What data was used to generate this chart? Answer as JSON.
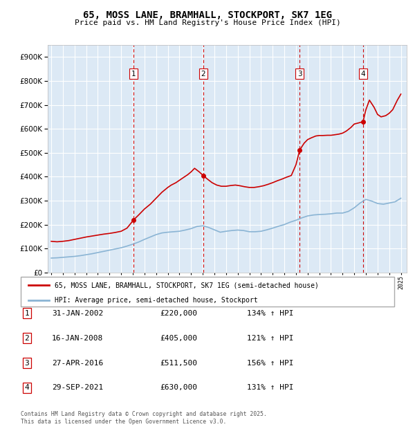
{
  "title": "65, MOSS LANE, BRAMHALL, STOCKPORT, SK7 1EG",
  "subtitle": "Price paid vs. HM Land Registry's House Price Index (HPI)",
  "property_label": "65, MOSS LANE, BRAMHALL, STOCKPORT, SK7 1EG (semi-detached house)",
  "hpi_label": "HPI: Average price, semi-detached house, Stockport",
  "footer": "Contains HM Land Registry data © Crown copyright and database right 2025.\nThis data is licensed under the Open Government Licence v3.0.",
  "transactions": [
    {
      "num": 1,
      "date": "31-JAN-2002",
      "price": 220000,
      "hpi_pct": "134%",
      "year": 2002.08
    },
    {
      "num": 2,
      "date": "16-JAN-2008",
      "price": 405000,
      "hpi_pct": "121%",
      "year": 2008.04
    },
    {
      "num": 3,
      "date": "27-APR-2016",
      "price": 511500,
      "hpi_pct": "156%",
      "year": 2016.32
    },
    {
      "num": 4,
      "date": "29-SEP-2021",
      "price": 630000,
      "hpi_pct": "131%",
      "year": 2021.75
    }
  ],
  "property_color": "#cc0000",
  "hpi_color": "#8ab4d4",
  "plot_bg": "#dce9f5",
  "ylim": [
    0,
    950000
  ],
  "yticks": [
    0,
    100000,
    200000,
    300000,
    400000,
    500000,
    600000,
    700000,
    800000,
    900000
  ],
  "xlim_start": 1994.7,
  "xlim_end": 2025.5,
  "hpi_data_x": [
    1995.0,
    1995.5,
    1996.0,
    1996.5,
    1997.0,
    1997.5,
    1998.0,
    1998.5,
    1999.0,
    1999.5,
    2000.0,
    2000.5,
    2001.0,
    2001.5,
    2002.0,
    2002.5,
    2003.0,
    2003.5,
    2004.0,
    2004.5,
    2005.0,
    2005.5,
    2006.0,
    2006.5,
    2007.0,
    2007.5,
    2008.0,
    2008.5,
    2009.0,
    2009.5,
    2010.0,
    2010.5,
    2011.0,
    2011.5,
    2012.0,
    2012.5,
    2013.0,
    2013.5,
    2014.0,
    2014.5,
    2015.0,
    2015.5,
    2016.0,
    2016.5,
    2017.0,
    2017.5,
    2018.0,
    2018.5,
    2019.0,
    2019.5,
    2020.0,
    2020.5,
    2021.0,
    2021.5,
    2022.0,
    2022.5,
    2023.0,
    2023.5,
    2024.0,
    2024.5,
    2025.0
  ],
  "hpi_data_y": [
    60000,
    61000,
    63000,
    65000,
    67000,
    70000,
    74000,
    78000,
    83000,
    88000,
    93000,
    98000,
    103000,
    110000,
    118000,
    127000,
    138000,
    148000,
    158000,
    165000,
    168000,
    170000,
    172000,
    177000,
    183000,
    192000,
    195000,
    188000,
    178000,
    168000,
    172000,
    175000,
    177000,
    175000,
    170000,
    170000,
    172000,
    178000,
    185000,
    193000,
    200000,
    210000,
    218000,
    228000,
    236000,
    240000,
    242000,
    243000,
    245000,
    248000,
    248000,
    255000,
    270000,
    290000,
    305000,
    298000,
    288000,
    285000,
    290000,
    295000,
    310000
  ],
  "property_data_x": [
    1995.0,
    1995.5,
    1996.0,
    1996.5,
    1997.0,
    1997.5,
    1998.0,
    1998.5,
    1999.0,
    1999.5,
    2000.0,
    2000.5,
    2001.0,
    2001.5,
    2002.08,
    2002.5,
    2003.0,
    2003.5,
    2004.0,
    2004.5,
    2005.0,
    2005.3,
    2005.7,
    2006.0,
    2006.3,
    2006.7,
    2007.0,
    2007.3,
    2007.7,
    2008.04,
    2008.4,
    2008.8,
    2009.2,
    2009.6,
    2010.0,
    2010.4,
    2010.8,
    2011.2,
    2011.6,
    2012.0,
    2012.4,
    2012.8,
    2013.2,
    2013.6,
    2014.0,
    2014.4,
    2014.8,
    2015.2,
    2015.6,
    2016.0,
    2016.32,
    2016.7,
    2017.0,
    2017.3,
    2017.7,
    2018.0,
    2018.3,
    2018.7,
    2019.0,
    2019.3,
    2019.7,
    2020.0,
    2020.3,
    2020.7,
    2021.0,
    2021.4,
    2021.75,
    2022.0,
    2022.3,
    2022.7,
    2023.0,
    2023.3,
    2023.7,
    2024.0,
    2024.3,
    2024.7,
    2025.0
  ],
  "property_data_y": [
    130000,
    128000,
    130000,
    133000,
    138000,
    143000,
    148000,
    152000,
    156000,
    160000,
    163000,
    167000,
    172000,
    185000,
    220000,
    240000,
    265000,
    285000,
    310000,
    335000,
    355000,
    365000,
    375000,
    385000,
    395000,
    408000,
    420000,
    435000,
    420000,
    405000,
    390000,
    375000,
    365000,
    360000,
    360000,
    363000,
    365000,
    362000,
    358000,
    355000,
    355000,
    358000,
    362000,
    368000,
    375000,
    383000,
    390000,
    398000,
    405000,
    450000,
    511500,
    540000,
    555000,
    562000,
    570000,
    572000,
    572000,
    573000,
    573000,
    575000,
    578000,
    582000,
    590000,
    605000,
    620000,
    625000,
    630000,
    680000,
    720000,
    690000,
    660000,
    650000,
    655000,
    665000,
    680000,
    720000,
    745000
  ]
}
